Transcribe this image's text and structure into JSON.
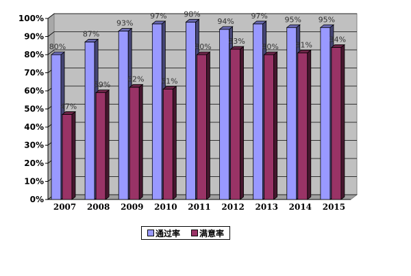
{
  "chart_data": {
    "type": "bar",
    "categories": [
      "2007",
      "2008",
      "2009",
      "2010",
      "2011",
      "2012",
      "2013",
      "2014",
      "2015"
    ],
    "series": [
      {
        "name": "通过率",
        "values": [
          80,
          87,
          93,
          97,
          98,
          94,
          97,
          95,
          95
        ],
        "labels": [
          "80%",
          "87%",
          "93%",
          "97%",
          "98%",
          "94%",
          "97%",
          "95%",
          "95%"
        ],
        "color": "#9999ff"
      },
      {
        "name": "满意率",
        "values": [
          47,
          59,
          62,
          61,
          80,
          83,
          80,
          81,
          84
        ],
        "labels": [
          "47%",
          "59%",
          "62%",
          "61%",
          "80%",
          "83%",
          "80%",
          "81%",
          "84%"
        ],
        "color": "#993366"
      }
    ],
    "yticks": [
      "0%",
      "10%",
      "20%",
      "30%",
      "40%",
      "50%",
      "60%",
      "70%",
      "80%",
      "90%",
      "100%"
    ],
    "ylim": [
      0,
      100
    ],
    "grid": true,
    "plot_background": "#c0c0c0",
    "legend_position": "bottom",
    "style": "3d-bar"
  }
}
